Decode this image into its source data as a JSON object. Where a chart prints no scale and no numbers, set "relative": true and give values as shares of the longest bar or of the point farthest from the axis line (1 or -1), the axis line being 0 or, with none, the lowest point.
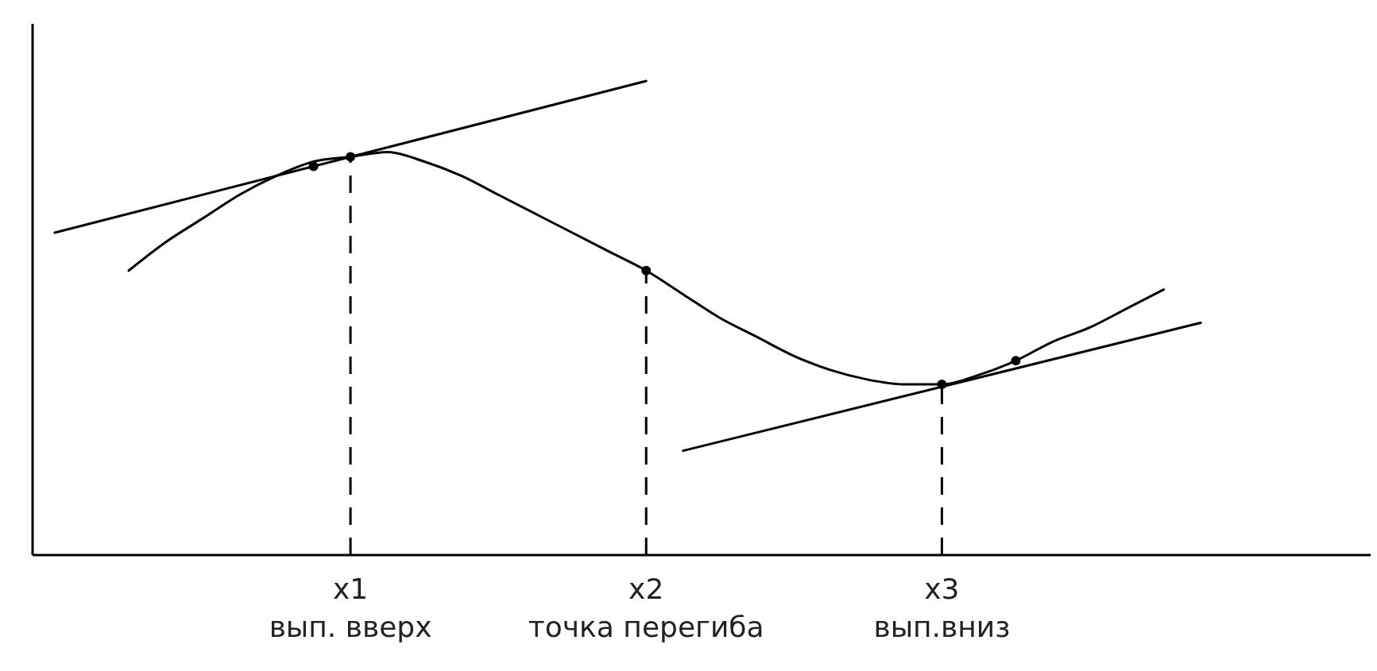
{
  "chart_data": {
    "type": "line",
    "relative": true,
    "categories": [
      null,
      null,
      null,
      null,
      null,
      null,
      null,
      null,
      "x1\nвып. вверх",
      null,
      null,
      null,
      null,
      null,
      null,
      null,
      "x2\nточка перегиба",
      null,
      null,
      null,
      null,
      null,
      null,
      null,
      "x3\nвып.вниз",
      null,
      null,
      null,
      null,
      null,
      null,
      null,
      null,
      null,
      null,
      null
    ],
    "series": [
      {
        "color": "#000000",
        "line_style": "solid",
        "values": [
          null,
          null,
          0.6,
          0.66,
          0.71,
          0.76,
          0.8,
          0.83,
          0.84,
          0.85,
          0.83,
          0.8,
          0.76,
          0.72,
          0.68,
          0.64,
          0.6,
          0.55,
          0.5,
          0.46,
          0.42,
          0.39,
          0.37,
          0.36,
          0.36,
          0.38,
          0.41,
          0.45,
          0.48,
          0.52,
          0.56,
          null,
          null,
          null,
          null,
          null
        ]
      },
      {
        "color": "#000000",
        "line_style": "solid",
        "values": [
          0.68,
          null,
          null,
          null,
          null,
          null,
          null,
          null,
          null,
          null,
          null,
          null,
          null,
          null,
          null,
          null,
          1,
          null,
          null,
          null,
          null,
          null,
          null,
          null,
          null,
          null,
          null,
          null,
          null,
          null,
          null,
          null,
          null,
          null,
          null,
          null
        ]
      },
      {
        "color": "#000000",
        "line_style": "solid",
        "values": [
          null,
          null,
          null,
          null,
          null,
          null,
          null,
          null,
          null,
          null,
          null,
          null,
          null,
          null,
          null,
          null,
          null,
          0.22,
          null,
          null,
          null,
          null,
          null,
          null,
          null,
          null,
          null,
          null,
          null,
          null,
          null,
          0.49,
          null,
          null,
          null,
          null
        ]
      },
      {
        "type": "lollipop",
        "color": "#000000",
        "line_style": "dashed",
        "marker": "circle",
        "values": [
          null,
          null,
          null,
          null,
          null,
          null,
          null,
          null,
          0.84,
          null,
          null,
          null,
          null,
          null,
          null,
          null,
          0.6,
          null,
          null,
          null,
          null,
          null,
          null,
          null,
          0.36,
          null,
          null,
          null,
          null,
          null,
          null,
          null,
          null,
          null,
          null,
          null
        ]
      },
      {
        "type": "scatter",
        "color": "#000000",
        "marker": "circle",
        "values": [
          null,
          null,
          null,
          null,
          null,
          null,
          null,
          0.82,
          null,
          null,
          null,
          null,
          null,
          null,
          null,
          null,
          null,
          null,
          null,
          null,
          null,
          null,
          null,
          null,
          null,
          null,
          0.41,
          null,
          null,
          null,
          null,
          null,
          null,
          null,
          null,
          null
        ]
      }
    ]
  }
}
